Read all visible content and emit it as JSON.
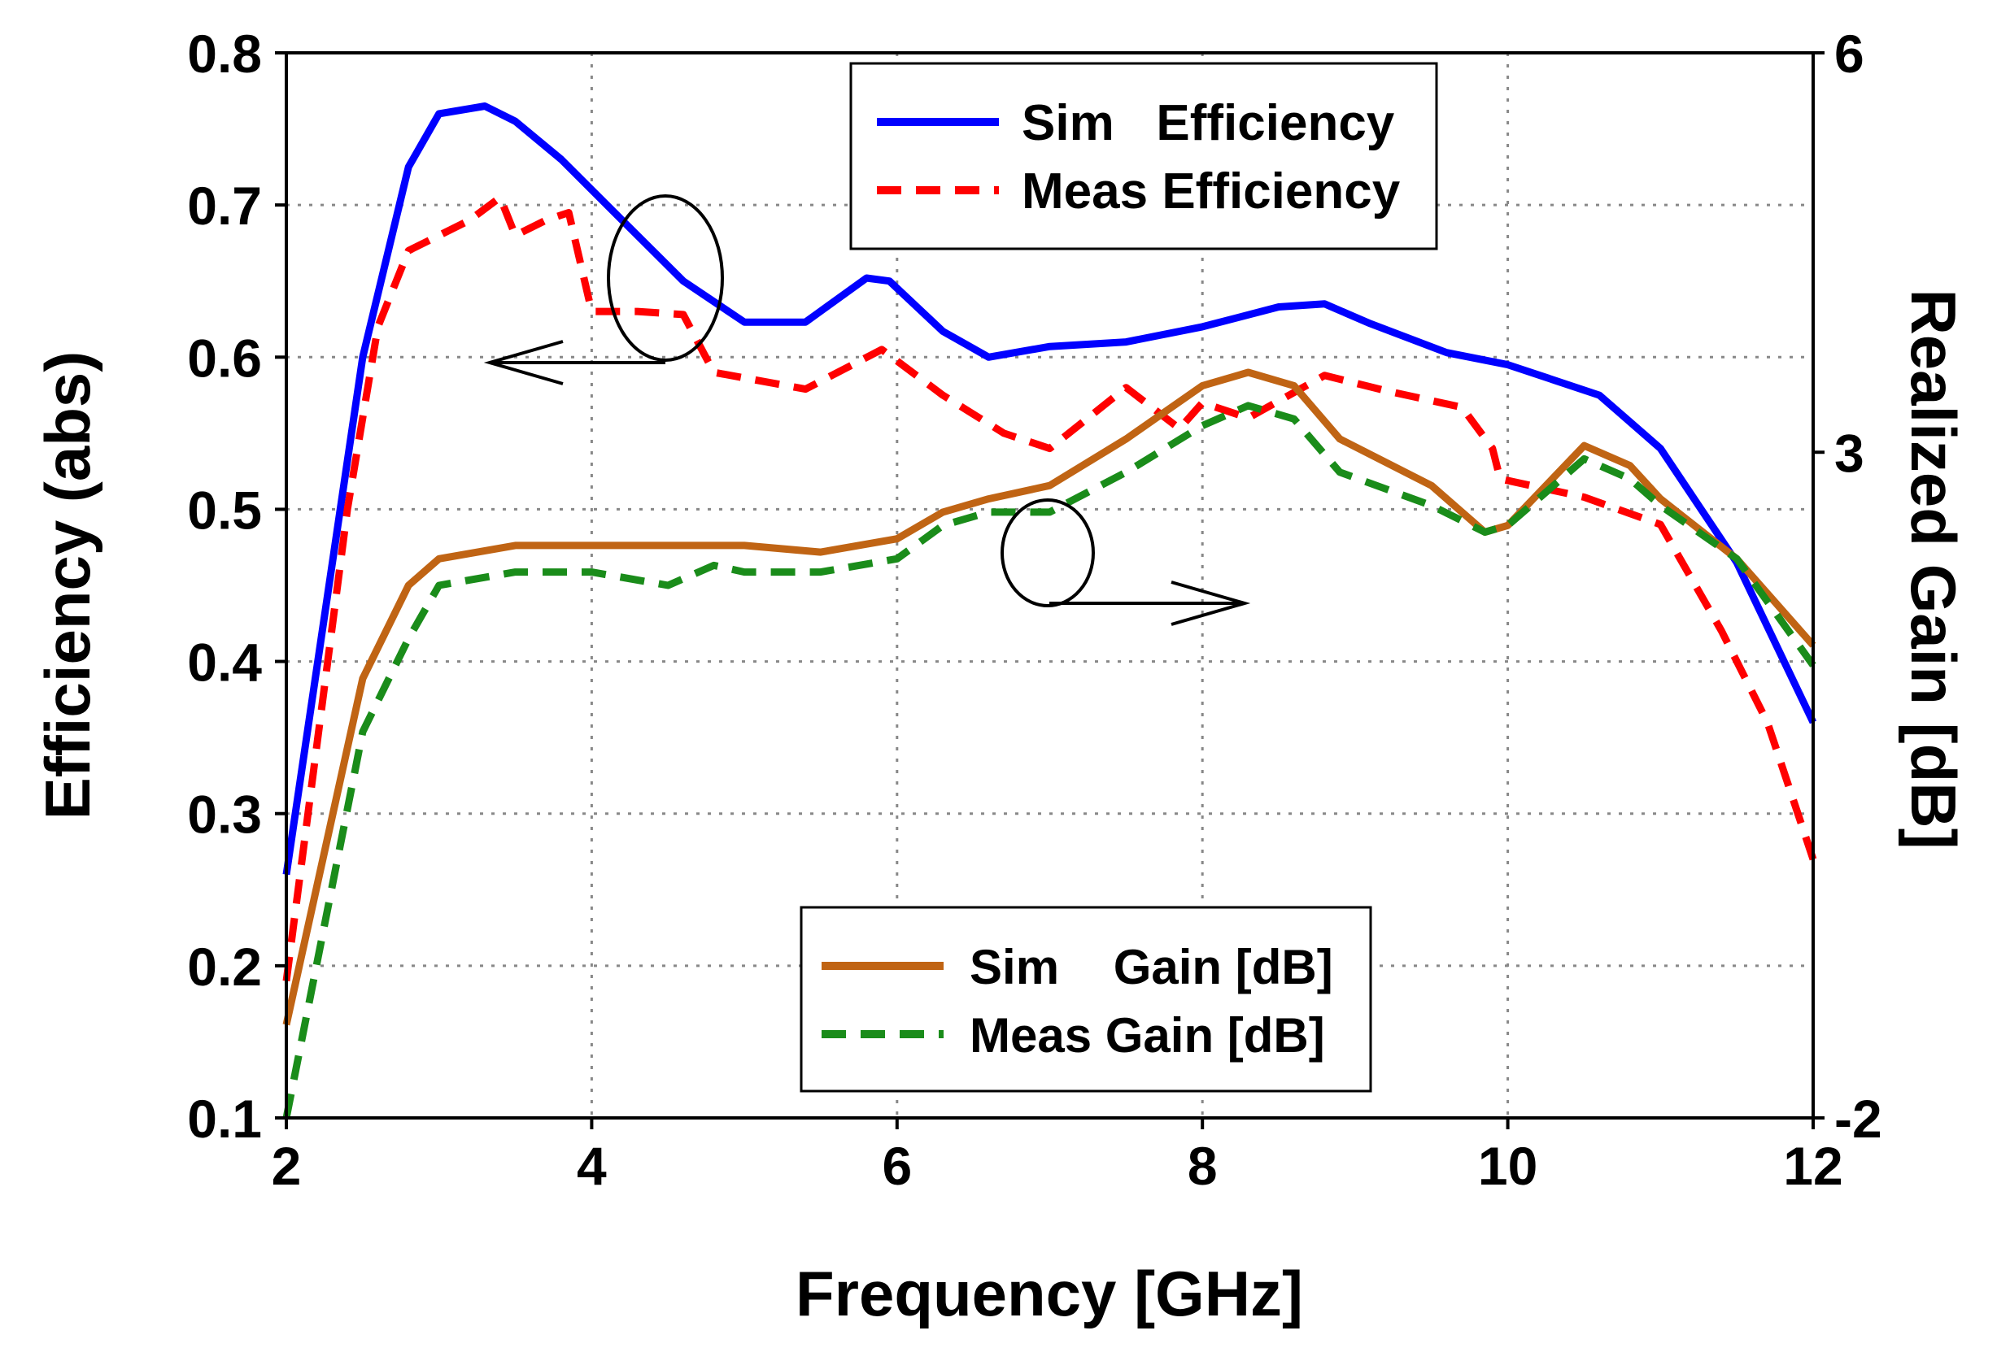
{
  "chart_data": {
    "type": "line",
    "xlabel": "Frequency [GHz]",
    "ylabel": "Efficiency (abs)",
    "y2label": "Realized Gain [dB]",
    "xlim": [
      2,
      12
    ],
    "ylim": [
      0.1,
      0.8
    ],
    "y2lim": [
      -2,
      6
    ],
    "x_ticks": [
      "2",
      "4",
      "6",
      "8",
      "10",
      "12"
    ],
    "y_ticks": [
      "0.1",
      "0.2",
      "0.3",
      "0.4",
      "0.5",
      "0.6",
      "0.7",
      "0.8"
    ],
    "y2_ticks": [
      "-2",
      "3",
      "6"
    ],
    "grid": true,
    "legend_efficiency": {
      "position": "top-right",
      "entries": [
        "Sim   Efficiency",
        "Meas Efficiency"
      ]
    },
    "legend_gain": {
      "position": "bottom-center",
      "entries": [
        "Sim    Gain [dB]",
        "Meas Gain [dB]"
      ]
    },
    "series": [
      {
        "name": "Sim Efficiency",
        "axis": "left",
        "color": "#0000ff",
        "dash": "solid",
        "points": [
          [
            2.0,
            0.26
          ],
          [
            2.5,
            0.6
          ],
          [
            2.8,
            0.725
          ],
          [
            3.0,
            0.76
          ],
          [
            3.3,
            0.765
          ],
          [
            3.5,
            0.755
          ],
          [
            3.8,
            0.73
          ],
          [
            4.2,
            0.69
          ],
          [
            4.6,
            0.65
          ],
          [
            5.0,
            0.623
          ],
          [
            5.4,
            0.623
          ],
          [
            5.8,
            0.652
          ],
          [
            5.95,
            0.65
          ],
          [
            6.3,
            0.617
          ],
          [
            6.6,
            0.6
          ],
          [
            7.0,
            0.607
          ],
          [
            7.5,
            0.61
          ],
          [
            8.0,
            0.62
          ],
          [
            8.5,
            0.633
          ],
          [
            8.8,
            0.635
          ],
          [
            9.1,
            0.622
          ],
          [
            9.6,
            0.603
          ],
          [
            10.0,
            0.595
          ],
          [
            10.6,
            0.575
          ],
          [
            11.0,
            0.54
          ],
          [
            11.5,
            0.465
          ],
          [
            12.0,
            0.36
          ]
        ]
      },
      {
        "name": "Meas Efficiency",
        "axis": "left",
        "color": "#ff0000",
        "dash": "dashed",
        "points": [
          [
            2.0,
            0.19
          ],
          [
            2.4,
            0.5
          ],
          [
            2.6,
            0.62
          ],
          [
            2.8,
            0.67
          ],
          [
            3.0,
            0.68
          ],
          [
            3.2,
            0.69
          ],
          [
            3.4,
            0.705
          ],
          [
            3.5,
            0.68
          ],
          [
            3.7,
            0.69
          ],
          [
            3.85,
            0.695
          ],
          [
            4.0,
            0.63
          ],
          [
            4.3,
            0.63
          ],
          [
            4.6,
            0.628
          ],
          [
            4.8,
            0.59
          ],
          [
            5.4,
            0.579
          ],
          [
            5.9,
            0.605
          ],
          [
            6.3,
            0.575
          ],
          [
            6.7,
            0.55
          ],
          [
            7.0,
            0.54
          ],
          [
            7.5,
            0.58
          ],
          [
            7.85,
            0.553
          ],
          [
            8.0,
            0.57
          ],
          [
            8.3,
            0.56
          ],
          [
            8.8,
            0.588
          ],
          [
            9.2,
            0.578
          ],
          [
            9.7,
            0.567
          ],
          [
            9.9,
            0.54
          ],
          [
            9.95,
            0.52
          ],
          [
            10.5,
            0.508
          ],
          [
            11.0,
            0.49
          ],
          [
            11.4,
            0.42
          ],
          [
            11.7,
            0.36
          ],
          [
            12.0,
            0.27
          ]
        ]
      },
      {
        "name": "Sim Gain [dB]",
        "axis": "right",
        "color": "#c06414",
        "dash": "solid",
        "points": [
          [
            2.0,
            -1.3
          ],
          [
            2.5,
            1.3
          ],
          [
            2.8,
            2.0
          ],
          [
            3.0,
            2.2
          ],
          [
            3.5,
            2.3
          ],
          [
            4.0,
            2.3
          ],
          [
            4.5,
            2.3
          ],
          [
            5.0,
            2.3
          ],
          [
            5.5,
            2.25
          ],
          [
            6.0,
            2.35
          ],
          [
            6.3,
            2.55
          ],
          [
            6.6,
            2.65
          ],
          [
            7.0,
            2.75
          ],
          [
            7.5,
            3.1
          ],
          [
            8.0,
            3.5
          ],
          [
            8.3,
            3.6
          ],
          [
            8.6,
            3.5
          ],
          [
            8.9,
            3.1
          ],
          [
            9.5,
            2.75
          ],
          [
            9.85,
            2.4
          ],
          [
            10.0,
            2.45
          ],
          [
            10.5,
            3.05
          ],
          [
            10.8,
            2.9
          ],
          [
            11.0,
            2.65
          ],
          [
            11.5,
            2.2
          ],
          [
            12.0,
            1.55
          ]
        ]
      },
      {
        "name": "Meas Gain [dB]",
        "axis": "right",
        "color": "#1a8c1a",
        "dash": "dashed",
        "points": [
          [
            2.0,
            -2.0
          ],
          [
            2.5,
            0.9
          ],
          [
            2.8,
            1.6
          ],
          [
            3.0,
            2.0
          ],
          [
            3.5,
            2.1
          ],
          [
            4.0,
            2.1
          ],
          [
            4.5,
            2.0
          ],
          [
            4.8,
            2.15
          ],
          [
            5.0,
            2.1
          ],
          [
            5.5,
            2.1
          ],
          [
            6.0,
            2.2
          ],
          [
            6.3,
            2.45
          ],
          [
            6.6,
            2.55
          ],
          [
            7.0,
            2.55
          ],
          [
            7.5,
            2.85
          ],
          [
            8.0,
            3.2
          ],
          [
            8.3,
            3.35
          ],
          [
            8.6,
            3.25
          ],
          [
            8.9,
            2.85
          ],
          [
            9.5,
            2.6
          ],
          [
            9.85,
            2.4
          ],
          [
            10.0,
            2.45
          ],
          [
            10.5,
            2.95
          ],
          [
            10.8,
            2.8
          ],
          [
            11.0,
            2.6
          ],
          [
            11.5,
            2.2
          ],
          [
            12.0,
            1.4
          ]
        ]
      }
    ]
  }
}
